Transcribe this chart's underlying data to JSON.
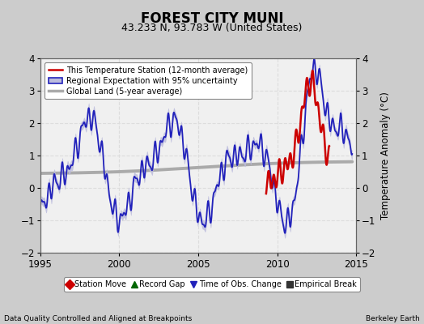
{
  "title": "FOREST CITY MUNI",
  "subtitle": "43.233 N, 93.783 W (United States)",
  "xlabel_bottom": "Data Quality Controlled and Aligned at Breakpoints",
  "xlabel_right": "Berkeley Earth",
  "ylabel": "Temperature Anomaly (°C)",
  "xlim": [
    1995,
    2015
  ],
  "ylim": [
    -2,
    4
  ],
  "yticks": [
    -2,
    -1,
    0,
    1,
    2,
    3,
    4
  ],
  "xticks": [
    1995,
    2000,
    2005,
    2010,
    2015
  ],
  "bg_color": "#cccccc",
  "plot_bg_color": "#f0f0f0",
  "grid_color": "#dddddd",
  "regional_color": "#2222bb",
  "regional_band_color": "#bbbbdd",
  "station_color": "#cc0000",
  "global_color": "#aaaaaa",
  "title_fontsize": 12,
  "subtitle_fontsize": 9,
  "legend_items": [
    {
      "label": "This Temperature Station (12-month average)",
      "color": "#cc0000",
      "lw": 1.8
    },
    {
      "label": "Regional Expectation with 95% uncertainty",
      "color": "#2222bb",
      "lw": 1.5
    },
    {
      "label": "Global Land (5-year average)",
      "color": "#aaaaaa",
      "lw": 2.5
    }
  ],
  "bottom_legend": [
    {
      "label": "Station Move",
      "marker": "D",
      "color": "#cc0000"
    },
    {
      "label": "Record Gap",
      "marker": "^",
      "color": "#006600"
    },
    {
      "label": "Time of Obs. Change",
      "marker": "v",
      "color": "#2222bb"
    },
    {
      "label": "Empirical Break",
      "marker": "s",
      "color": "#333333"
    }
  ]
}
